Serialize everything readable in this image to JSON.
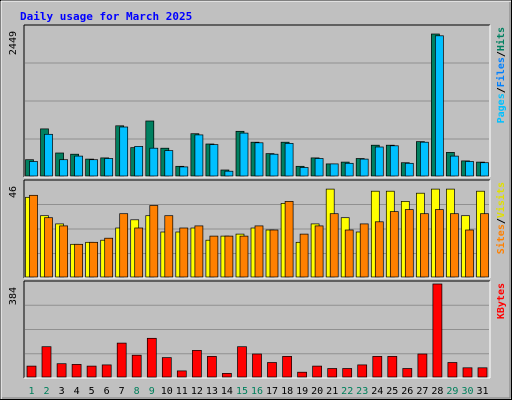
{
  "chart_data": {
    "type": "bar",
    "title": "Daily usage for March 2025",
    "categories": [
      "1",
      "2",
      "3",
      "4",
      "5",
      "6",
      "7",
      "8",
      "9",
      "10",
      "11",
      "12",
      "13",
      "14",
      "15",
      "16",
      "17",
      "18",
      "19",
      "20",
      "21",
      "22",
      "23",
      "24",
      "25",
      "26",
      "27",
      "28",
      "29",
      "30",
      "31"
    ],
    "weekend_days": [
      "1",
      "2",
      "8",
      "9",
      "15",
      "16",
      "22",
      "23",
      "29",
      "30"
    ],
    "panels": [
      {
        "name": "hits-files",
        "max_label": "2449",
        "ylim": [
          0,
          2449
        ],
        "right_labels": [
          {
            "text": "Pages",
            "color": "#00c0ff"
          },
          {
            "text": "/",
            "color": "#000000"
          },
          {
            "text": "Files",
            "color": "#0080ff"
          },
          {
            "text": "/",
            "color": "#000000"
          },
          {
            "text": "Hits",
            "color": "#008060"
          }
        ],
        "series": [
          {
            "name": "Hits",
            "color": "#008060",
            "values": [
              270,
              780,
              380,
              360,
              280,
              300,
              830,
              470,
              910,
              460,
              160,
              700,
              530,
              100,
              740,
              560,
              370,
              560,
              160,
              300,
              200,
              230,
              290,
              510,
              510,
              220,
              570,
              2350,
              390,
              250,
              230
            ]
          },
          {
            "name": "Files",
            "color": "#00c0ff",
            "values": [
              240,
              690,
              270,
              330,
              270,
              290,
              810,
              490,
              460,
              420,
              150,
              680,
              520,
              80,
              710,
              550,
              360,
              540,
              140,
              290,
              200,
              210,
              280,
              480,
              500,
              210,
              560,
              2320,
              330,
              240,
              220
            ]
          }
        ]
      },
      {
        "name": "visits-sites",
        "max_label": "46",
        "ylim": [
          0,
          46
        ],
        "right_labels": [
          {
            "text": "Sites",
            "color": "#ff8000"
          },
          {
            "text": "/",
            "color": "#000000"
          },
          {
            "text": "Visits",
            "color": "#e0e000"
          }
        ],
        "series": [
          {
            "name": "Visits",
            "color": "#ffff00",
            "values": [
              39,
              30,
              26,
              16,
              17,
              18,
              24,
              28,
              30,
              22,
              22,
              24,
              18,
              20,
              21,
              24,
              23,
              36,
              17,
              26,
              43,
              29,
              22,
              42,
              42,
              37,
              41,
              43,
              43,
              30,
              42
            ]
          },
          {
            "name": "Sites",
            "color": "#ff8000",
            "values": [
              40,
              29,
              25,
              16,
              17,
              19,
              31,
              24,
              35,
              30,
              24,
              25,
              20,
              20,
              20,
              25,
              23,
              37,
              21,
              25,
              31,
              23,
              26,
              27,
              32,
              33,
              31,
              33,
              31,
              23,
              31
            ]
          }
        ]
      },
      {
        "name": "kbytes",
        "max_label": "384",
        "ylim": [
          0,
          384
        ],
        "right_labels": [
          {
            "text": "KBytes",
            "color": "#ff0000"
          }
        ],
        "series": [
          {
            "name": "KBytes",
            "color": "#ff0000",
            "values": [
              45,
              125,
              55,
              52,
              45,
              50,
              140,
              90,
              160,
              80,
              25,
              110,
              85,
              15,
              125,
              95,
              60,
              85,
              20,
              45,
              35,
              35,
              50,
              85,
              85,
              35,
              95,
              384,
              60,
              38,
              38
            ]
          }
        ]
      }
    ],
    "grid": true,
    "background_color": "#c0c0c0",
    "title_color": "#0000ff",
    "weekday_label_color": "#000000",
    "weekend_label_color": "#00805c"
  }
}
